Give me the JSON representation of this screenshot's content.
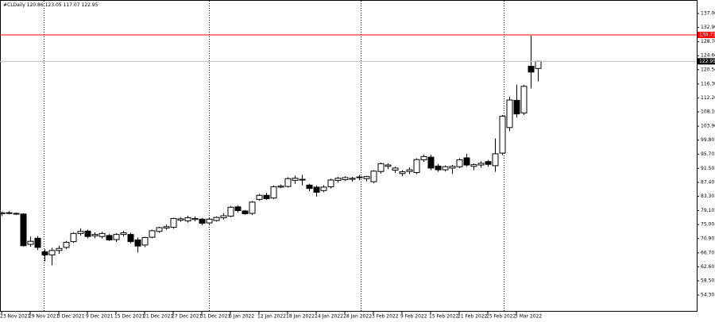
{
  "header": {
    "symbol": "#CLDaily",
    "ohlc": [
      120.86,
      123.05,
      117.07,
      122.95
    ]
  },
  "chart_data": {
    "type": "candlestick",
    "categories": [
      "23 Nov 2021",
      null,
      null,
      null,
      "29 Nov 2021",
      null,
      null,
      null,
      "3 Dec 2021",
      null,
      null,
      null,
      "9 Dec 2021",
      null,
      null,
      null,
      "15 Dec 2021",
      null,
      null,
      null,
      "21 Dec 2021",
      null,
      null,
      null,
      "27 Dec 2021",
      null,
      null,
      null,
      "31 Dec 2021",
      null,
      null,
      null,
      "6 Jan 2022",
      null,
      null,
      null,
      "12 Jan 2022",
      null,
      null,
      null,
      "18 Jan 2022",
      null,
      null,
      null,
      "24 Jan 2022",
      null,
      null,
      null,
      "28 Jan 2022",
      null,
      null,
      null,
      "3 Feb 2022",
      null,
      null,
      null,
      "9 Feb 2022",
      null,
      null,
      null,
      "15 Feb 2022",
      null,
      null,
      null,
      "21 Feb 2022",
      null,
      null,
      null,
      "25 Feb 2022",
      null,
      null,
      null,
      "3 Mar 2022",
      null,
      null,
      null
    ],
    "open": [
      78.2,
      78.5,
      78.3,
      78.1,
      69.2,
      71.0,
      67.0,
      66.1,
      67.4,
      68.3,
      70.0,
      72.4,
      73.1,
      71.7,
      71.5,
      71.8,
      70.6,
      72.1,
      72.1,
      70.5,
      69.0,
      71.3,
      73.0,
      74.0,
      74.2,
      76.3,
      76.1,
      76.5,
      76.6,
      75.5,
      76.2,
      77.0,
      77.5,
      80.2,
      79.0,
      78.3,
      82.4,
      83.6,
      82.8,
      86.0,
      86.2,
      88.0,
      88.3,
      86.6,
      86.0,
      85.0,
      86.1,
      88.0,
      88.2,
      88.3,
      88.8,
      88.5,
      87.6,
      90.6,
      92.1,
      91.0,
      90.0,
      90.6,
      90.3,
      94.0,
      94.8,
      92.2,
      91.1,
      91.6,
      92.0,
      94.6,
      92.1,
      92.5,
      93.5,
      92.3,
      96.0,
      103.5,
      111.5,
      107.8,
      121.5,
      120.86
    ],
    "high": [
      78.8,
      78.9,
      78.6,
      78.3,
      71.5,
      71.6,
      67.8,
      68.2,
      68.8,
      70.2,
      72.8,
      73.9,
      73.5,
      72.7,
      72.9,
      72.2,
      72.5,
      73.2,
      72.6,
      71.2,
      71.4,
      73.5,
      74.3,
      75.0,
      77.0,
      77.2,
      77.6,
      77.4,
      76.9,
      77.0,
      77.4,
      78.3,
      80.5,
      80.6,
      79.3,
      81.9,
      84.0,
      84.3,
      86.5,
      86.8,
      88.9,
      89.4,
      89.6,
      87.0,
      86.4,
      86.6,
      88.5,
      89.0,
      89.2,
      89.0,
      89.6,
      89.3,
      91.0,
      93.2,
      93.0,
      92.0,
      91.0,
      91.8,
      94.5,
      95.6,
      95.5,
      92.8,
      92.4,
      92.5,
      94.5,
      95.8,
      93.0,
      93.6,
      94.0,
      100.3,
      107.2,
      112.5,
      116.1,
      116.0,
      130.5,
      123.05
    ],
    "low": [
      77.5,
      78.0,
      77.8,
      68.5,
      68.5,
      67.5,
      64.2,
      63.0,
      66.4,
      67.8,
      69.6,
      71.8,
      71.0,
      71.0,
      70.9,
      70.2,
      69.9,
      71.5,
      69.5,
      66.8,
      68.4,
      71.0,
      72.6,
      73.5,
      73.8,
      75.8,
      75.6,
      76.0,
      74.8,
      75.1,
      75.9,
      76.5,
      77.2,
      78.6,
      77.9,
      77.8,
      82.0,
      82.3,
      82.5,
      85.7,
      85.9,
      87.0,
      86.5,
      84.8,
      83.2,
      84.5,
      85.6,
      87.3,
      87.8,
      87.6,
      88.0,
      87.7,
      87.2,
      90.0,
      91.3,
      90.2,
      89.2,
      89.8,
      89.8,
      93.4,
      91.0,
      90.5,
      90.6,
      89.9,
      91.6,
      92.0,
      91.0,
      91.7,
      92.0,
      90.5,
      95.4,
      102.4,
      106.5,
      107.2,
      115.0,
      117.07
    ],
    "close": [
      78.5,
      78.3,
      78.1,
      68.8,
      70.1,
      68.3,
      66.1,
      67.4,
      68.0,
      69.8,
      72.4,
      73.0,
      71.5,
      72.1,
      72.4,
      70.5,
      72.1,
      72.6,
      70.0,
      68.7,
      71.2,
      73.2,
      74.1,
      74.4,
      76.8,
      76.7,
      77.0,
      76.8,
      75.4,
      76.6,
      77.1,
      77.6,
      80.1,
      79.1,
      78.2,
      81.6,
      83.6,
      82.6,
      86.1,
      86.3,
      88.5,
      88.6,
      88.1,
      85.6,
      84.5,
      86.0,
      88.1,
      88.6,
      88.8,
      88.6,
      89.0,
      89.1,
      90.7,
      92.9,
      92.5,
      91.6,
      90.5,
      91.1,
      94.1,
      95.0,
      91.6,
      91.1,
      92.0,
      92.1,
      94.0,
      92.5,
      92.6,
      93.0,
      92.7,
      95.8,
      106.8,
      111.6,
      107.5,
      115.6,
      119.8,
      122.95
    ],
    "up_color": "#ffffff",
    "down_color": "#000000",
    "outline_color": "#000000",
    "ylim": [
      49.42,
      140.96
    ],
    "yticks": [
      {
        "value": 137,
        "label": "137.00"
      },
      {
        "value": 132.9,
        "label": "132.90"
      },
      {
        "value": 128.7,
        "label": "128.70"
      },
      {
        "value": 124.6,
        "label": "124.60"
      },
      {
        "value": 120.5,
        "label": "120.50"
      },
      {
        "value": 116.3,
        "label": "116.30"
      },
      {
        "value": 112.2,
        "label": "112.20"
      },
      {
        "value": 108.1,
        "label": "108.10"
      },
      {
        "value": 103.9,
        "label": "103.90"
      },
      {
        "value": 99.8,
        "label": "99.80"
      },
      {
        "value": 95.7,
        "label": "95.70"
      },
      {
        "value": 91.5,
        "label": "91.50"
      },
      {
        "value": 87.4,
        "label": "87.40"
      },
      {
        "value": 83.3,
        "label": "83.30"
      },
      {
        "value": 79.1,
        "label": "79.10"
      },
      {
        "value": 75,
        "label": "75.00"
      },
      {
        "value": 70.9,
        "label": "70.90"
      },
      {
        "value": 66.7,
        "label": "66.70"
      },
      {
        "value": 62.6,
        "label": "62.60"
      },
      {
        "value": 58.5,
        "label": "58.50"
      },
      {
        "value": 54.3,
        "label": "54.30"
      }
    ],
    "hlines": [
      {
        "value": 130.71,
        "color": "#ff0000",
        "tag_color": "#ff0000"
      },
      {
        "value": 122.95,
        "color": "#c0c0c0",
        "tag_color": "#000000"
      }
    ]
  }
}
